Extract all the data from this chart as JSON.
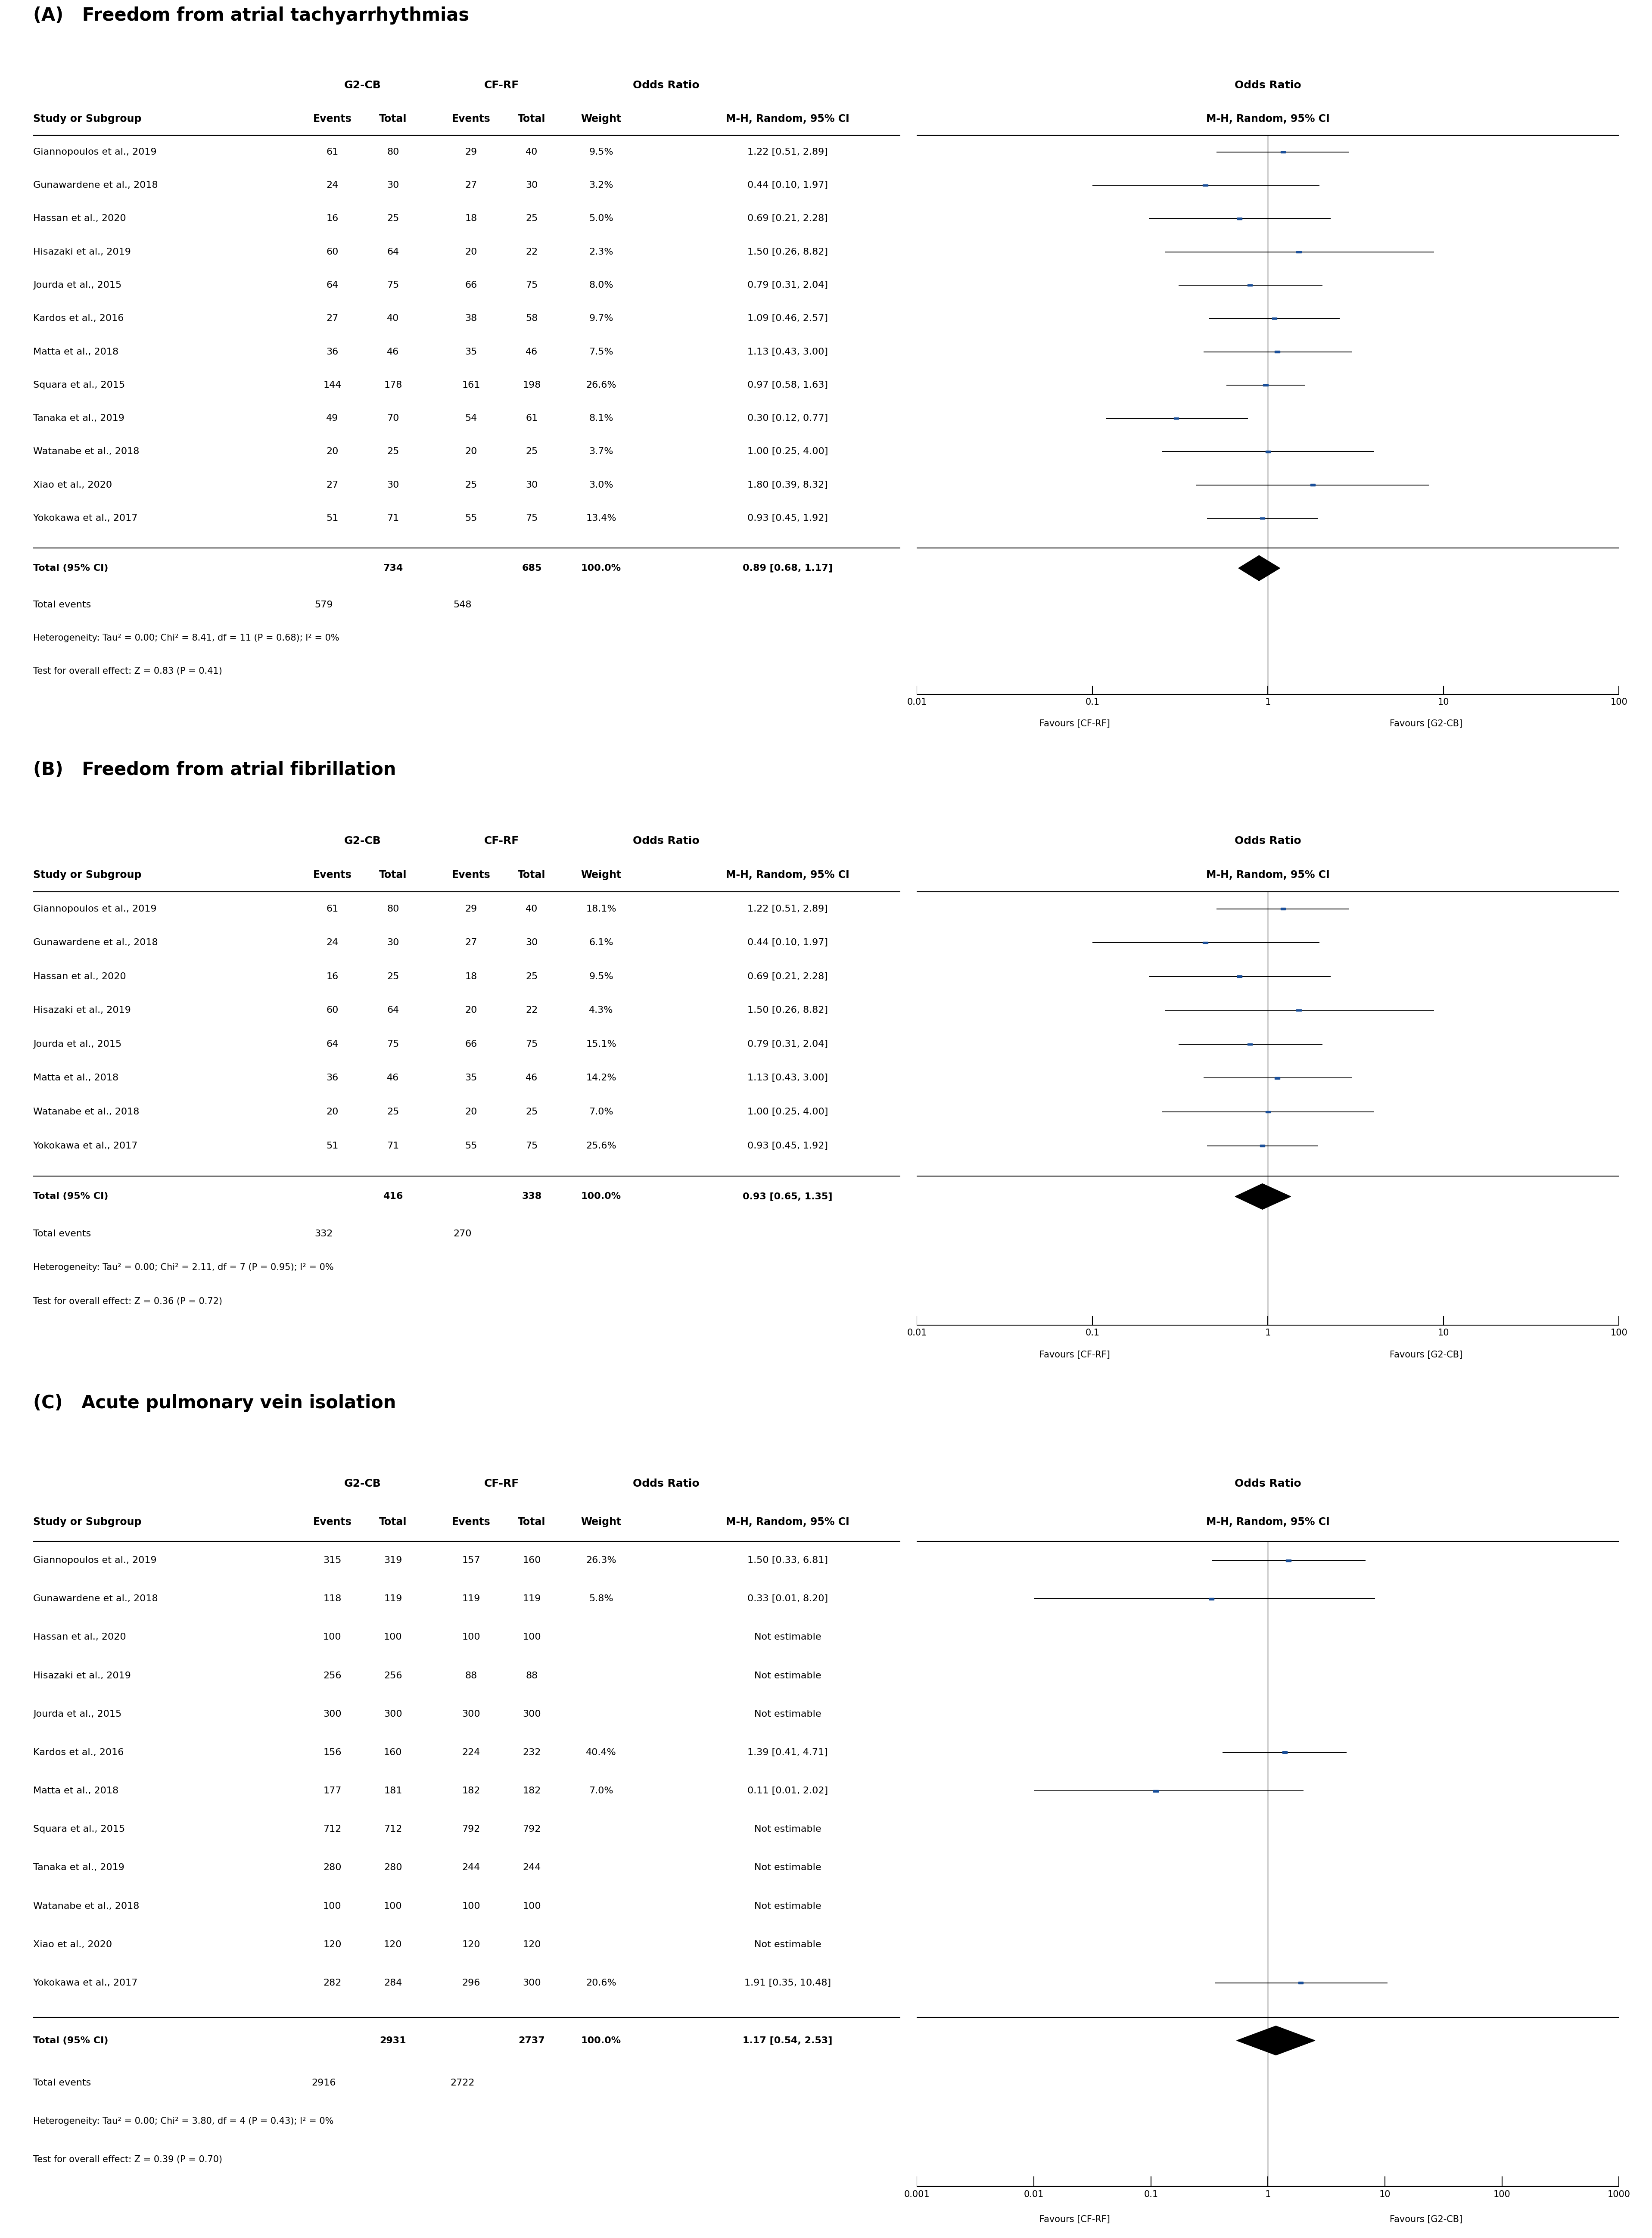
{
  "panel_A": {
    "title": "(A)   Freedom from atrial tachyarrhythmias",
    "studies": [
      {
        "name": "Giannopoulos et al., 2019",
        "g2cb_e": 61,
        "g2cb_t": 80,
        "cfrf_e": 29,
        "cfrf_t": 40,
        "weight": "9.5%",
        "or_text": "1.22 [0.51, 2.89]",
        "or": 1.22,
        "ci_low": 0.51,
        "ci_high": 2.89
      },
      {
        "name": "Gunawardene et al., 2018",
        "g2cb_e": 24,
        "g2cb_t": 30,
        "cfrf_e": 27,
        "cfrf_t": 30,
        "weight": "3.2%",
        "or_text": "0.44 [0.10, 1.97]",
        "or": 0.44,
        "ci_low": 0.1,
        "ci_high": 1.97
      },
      {
        "name": "Hassan et al., 2020",
        "g2cb_e": 16,
        "g2cb_t": 25,
        "cfrf_e": 18,
        "cfrf_t": 25,
        "weight": "5.0%",
        "or_text": "0.69 [0.21, 2.28]",
        "or": 0.69,
        "ci_low": 0.21,
        "ci_high": 2.28
      },
      {
        "name": "Hisazaki et al., 2019",
        "g2cb_e": 60,
        "g2cb_t": 64,
        "cfrf_e": 20,
        "cfrf_t": 22,
        "weight": "2.3%",
        "or_text": "1.50 [0.26, 8.82]",
        "or": 1.5,
        "ci_low": 0.26,
        "ci_high": 8.82
      },
      {
        "name": "Jourda et al., 2015",
        "g2cb_e": 64,
        "g2cb_t": 75,
        "cfrf_e": 66,
        "cfrf_t": 75,
        "weight": "8.0%",
        "or_text": "0.79 [0.31, 2.04]",
        "or": 0.79,
        "ci_low": 0.31,
        "ci_high": 2.04
      },
      {
        "name": "Kardos et al., 2016",
        "g2cb_e": 27,
        "g2cb_t": 40,
        "cfrf_e": 38,
        "cfrf_t": 58,
        "weight": "9.7%",
        "or_text": "1.09 [0.46, 2.57]",
        "or": 1.09,
        "ci_low": 0.46,
        "ci_high": 2.57
      },
      {
        "name": "Matta et al., 2018",
        "g2cb_e": 36,
        "g2cb_t": 46,
        "cfrf_e": 35,
        "cfrf_t": 46,
        "weight": "7.5%",
        "or_text": "1.13 [0.43, 3.00]",
        "or": 1.13,
        "ci_low": 0.43,
        "ci_high": 3.0
      },
      {
        "name": "Squara et al., 2015",
        "g2cb_e": 144,
        "g2cb_t": 178,
        "cfrf_e": 161,
        "cfrf_t": 198,
        "weight": "26.6%",
        "or_text": "0.97 [0.58, 1.63]",
        "or": 0.97,
        "ci_low": 0.58,
        "ci_high": 1.63
      },
      {
        "name": "Tanaka et al., 2019",
        "g2cb_e": 49,
        "g2cb_t": 70,
        "cfrf_e": 54,
        "cfrf_t": 61,
        "weight": "8.1%",
        "or_text": "0.30 [0.12, 0.77]",
        "or": 0.3,
        "ci_low": 0.12,
        "ci_high": 0.77
      },
      {
        "name": "Watanabe et al., 2018",
        "g2cb_e": 20,
        "g2cb_t": 25,
        "cfrf_e": 20,
        "cfrf_t": 25,
        "weight": "3.7%",
        "or_text": "1.00 [0.25, 4.00]",
        "or": 1.0,
        "ci_low": 0.25,
        "ci_high": 4.0
      },
      {
        "name": "Xiao et al., 2020",
        "g2cb_e": 27,
        "g2cb_t": 30,
        "cfrf_e": 25,
        "cfrf_t": 30,
        "weight": "3.0%",
        "or_text": "1.80 [0.39, 8.32]",
        "or": 1.8,
        "ci_low": 0.39,
        "ci_high": 8.32
      },
      {
        "name": "Yokokawa et al., 2017",
        "g2cb_e": 51,
        "g2cb_t": 71,
        "cfrf_e": 55,
        "cfrf_t": 75,
        "weight": "13.4%",
        "or_text": "0.93 [0.45, 1.92]",
        "or": 0.93,
        "ci_low": 0.45,
        "ci_high": 1.92
      }
    ],
    "total": {
      "g2cb_t": 734,
      "cfrf_t": 685,
      "g2cb_e": 579,
      "cfrf_e": 548,
      "or_text": "0.89 [0.68, 1.17]",
      "or": 0.89,
      "ci_low": 0.68,
      "ci_high": 1.17
    },
    "heterogeneity": "Heterogeneity: Tau² = 0.00; Chi² = 8.41, df = 11 (P = 0.68); I² = 0%",
    "overall_effect": "Test for overall effect: Z = 0.83 (P = 0.41)",
    "xlim": [
      0.01,
      100
    ],
    "xticks": [
      0.01,
      0.1,
      1,
      10,
      100
    ],
    "xtick_labels": [
      "0.01",
      "0.1",
      "1",
      "10",
      "100"
    ],
    "xlabel_left": "Favours [CF-RF]",
    "xlabel_right": "Favours [G2-CB]"
  },
  "panel_B": {
    "title": "(B)   Freedom from atrial fibrillation",
    "studies": [
      {
        "name": "Giannopoulos et al., 2019",
        "g2cb_e": 61,
        "g2cb_t": 80,
        "cfrf_e": 29,
        "cfrf_t": 40,
        "weight": "18.1%",
        "or_text": "1.22 [0.51, 2.89]",
        "or": 1.22,
        "ci_low": 0.51,
        "ci_high": 2.89
      },
      {
        "name": "Gunawardene et al., 2018",
        "g2cb_e": 24,
        "g2cb_t": 30,
        "cfrf_e": 27,
        "cfrf_t": 30,
        "weight": "6.1%",
        "or_text": "0.44 [0.10, 1.97]",
        "or": 0.44,
        "ci_low": 0.1,
        "ci_high": 1.97
      },
      {
        "name": "Hassan et al., 2020",
        "g2cb_e": 16,
        "g2cb_t": 25,
        "cfrf_e": 18,
        "cfrf_t": 25,
        "weight": "9.5%",
        "or_text": "0.69 [0.21, 2.28]",
        "or": 0.69,
        "ci_low": 0.21,
        "ci_high": 2.28
      },
      {
        "name": "Hisazaki et al., 2019",
        "g2cb_e": 60,
        "g2cb_t": 64,
        "cfrf_e": 20,
        "cfrf_t": 22,
        "weight": "4.3%",
        "or_text": "1.50 [0.26, 8.82]",
        "or": 1.5,
        "ci_low": 0.26,
        "ci_high": 8.82
      },
      {
        "name": "Jourda et al., 2015",
        "g2cb_e": 64,
        "g2cb_t": 75,
        "cfrf_e": 66,
        "cfrf_t": 75,
        "weight": "15.1%",
        "or_text": "0.79 [0.31, 2.04]",
        "or": 0.79,
        "ci_low": 0.31,
        "ci_high": 2.04
      },
      {
        "name": "Matta et al., 2018",
        "g2cb_e": 36,
        "g2cb_t": 46,
        "cfrf_e": 35,
        "cfrf_t": 46,
        "weight": "14.2%",
        "or_text": "1.13 [0.43, 3.00]",
        "or": 1.13,
        "ci_low": 0.43,
        "ci_high": 3.0
      },
      {
        "name": "Watanabe et al., 2018",
        "g2cb_e": 20,
        "g2cb_t": 25,
        "cfrf_e": 20,
        "cfrf_t": 25,
        "weight": "7.0%",
        "or_text": "1.00 [0.25, 4.00]",
        "or": 1.0,
        "ci_low": 0.25,
        "ci_high": 4.0
      },
      {
        "name": "Yokokawa et al., 2017",
        "g2cb_e": 51,
        "g2cb_t": 71,
        "cfrf_e": 55,
        "cfrf_t": 75,
        "weight": "25.6%",
        "or_text": "0.93 [0.45, 1.92]",
        "or": 0.93,
        "ci_low": 0.45,
        "ci_high": 1.92
      }
    ],
    "total": {
      "g2cb_t": 416,
      "cfrf_t": 338,
      "g2cb_e": 332,
      "cfrf_e": 270,
      "or_text": "0.93 [0.65, 1.35]",
      "or": 0.93,
      "ci_low": 0.65,
      "ci_high": 1.35
    },
    "heterogeneity": "Heterogeneity: Tau² = 0.00; Chi² = 2.11, df = 7 (P = 0.95); I² = 0%",
    "overall_effect": "Test for overall effect: Z = 0.36 (P = 0.72)",
    "xlim": [
      0.01,
      100
    ],
    "xticks": [
      0.01,
      0.1,
      1,
      10,
      100
    ],
    "xtick_labels": [
      "0.01",
      "0.1",
      "1",
      "10",
      "100"
    ],
    "xlabel_left": "Favours [CF-RF]",
    "xlabel_right": "Favours [G2-CB]"
  },
  "panel_C": {
    "title": "(C)   Acute pulmonary vein isolation",
    "studies": [
      {
        "name": "Giannopoulos et al., 2019",
        "g2cb_e": 315,
        "g2cb_t": 319,
        "cfrf_e": 157,
        "cfrf_t": 160,
        "weight": "26.3%",
        "or_text": "1.50 [0.33, 6.81]",
        "or": 1.5,
        "ci_low": 0.33,
        "ci_high": 6.81
      },
      {
        "name": "Gunawardene et al., 2018",
        "g2cb_e": 118,
        "g2cb_t": 119,
        "cfrf_e": 119,
        "cfrf_t": 119,
        "weight": "5.8%",
        "or_text": "0.33 [0.01, 8.20]",
        "or": 0.33,
        "ci_low": 0.01,
        "ci_high": 8.2
      },
      {
        "name": "Hassan et al., 2020",
        "g2cb_e": 100,
        "g2cb_t": 100,
        "cfrf_e": 100,
        "cfrf_t": 100,
        "weight": null,
        "or_text": "Not estimable",
        "or": null,
        "ci_low": null,
        "ci_high": null
      },
      {
        "name": "Hisazaki et al., 2019",
        "g2cb_e": 256,
        "g2cb_t": 256,
        "cfrf_e": 88,
        "cfrf_t": 88,
        "weight": null,
        "or_text": "Not estimable",
        "or": null,
        "ci_low": null,
        "ci_high": null
      },
      {
        "name": "Jourda et al., 2015",
        "g2cb_e": 300,
        "g2cb_t": 300,
        "cfrf_e": 300,
        "cfrf_t": 300,
        "weight": null,
        "or_text": "Not estimable",
        "or": null,
        "ci_low": null,
        "ci_high": null
      },
      {
        "name": "Kardos et al., 2016",
        "g2cb_e": 156,
        "g2cb_t": 160,
        "cfrf_e": 224,
        "cfrf_t": 232,
        "weight": "40.4%",
        "or_text": "1.39 [0.41, 4.71]",
        "or": 1.39,
        "ci_low": 0.41,
        "ci_high": 4.71
      },
      {
        "name": "Matta et al., 2018",
        "g2cb_e": 177,
        "g2cb_t": 181,
        "cfrf_e": 182,
        "cfrf_t": 182,
        "weight": "7.0%",
        "or_text": "0.11 [0.01, 2.02]",
        "or": 0.11,
        "ci_low": 0.01,
        "ci_high": 2.02
      },
      {
        "name": "Squara et al., 2015",
        "g2cb_e": 712,
        "g2cb_t": 712,
        "cfrf_e": 792,
        "cfrf_t": 792,
        "weight": null,
        "or_text": "Not estimable",
        "or": null,
        "ci_low": null,
        "ci_high": null
      },
      {
        "name": "Tanaka et al., 2019",
        "g2cb_e": 280,
        "g2cb_t": 280,
        "cfrf_e": 244,
        "cfrf_t": 244,
        "weight": null,
        "or_text": "Not estimable",
        "or": null,
        "ci_low": null,
        "ci_high": null
      },
      {
        "name": "Watanabe et al., 2018",
        "g2cb_e": 100,
        "g2cb_t": 100,
        "cfrf_e": 100,
        "cfrf_t": 100,
        "weight": null,
        "or_text": "Not estimable",
        "or": null,
        "ci_low": null,
        "ci_high": null
      },
      {
        "name": "Xiao et al., 2020",
        "g2cb_e": 120,
        "g2cb_t": 120,
        "cfrf_e": 120,
        "cfrf_t": 120,
        "weight": null,
        "or_text": "Not estimable",
        "or": null,
        "ci_low": null,
        "ci_high": null
      },
      {
        "name": "Yokokawa et al., 2017",
        "g2cb_e": 282,
        "g2cb_t": 284,
        "cfrf_e": 296,
        "cfrf_t": 300,
        "weight": "20.6%",
        "or_text": "1.91 [0.35, 10.48]",
        "or": 1.91,
        "ci_low": 0.35,
        "ci_high": 10.48
      }
    ],
    "total": {
      "g2cb_t": 2931,
      "cfrf_t": 2737,
      "g2cb_e": 2916,
      "cfrf_e": 2722,
      "or_text": "1.17 [0.54, 2.53]",
      "or": 1.17,
      "ci_low": 0.54,
      "ci_high": 2.53
    },
    "heterogeneity": "Heterogeneity: Tau² = 0.00; Chi² = 3.80, df = 4 (P = 0.43); I² = 0%",
    "overall_effect": "Test for overall effect: Z = 0.39 (P = 0.70)",
    "xlim": [
      0.001,
      1000
    ],
    "xticks": [
      0.001,
      0.01,
      0.1,
      1,
      10,
      100,
      1000
    ],
    "xtick_labels": [
      "0.001",
      "0.01",
      "0.1",
      "1",
      "10",
      "100",
      "1000"
    ],
    "xlabel_left": "Favours [CF-RF]",
    "xlabel_right": "Favours [G2-CB]"
  },
  "marker_color": "#1a4f99",
  "diamond_color": "#000000",
  "text_color": "#000000",
  "bg_color": "#ffffff"
}
